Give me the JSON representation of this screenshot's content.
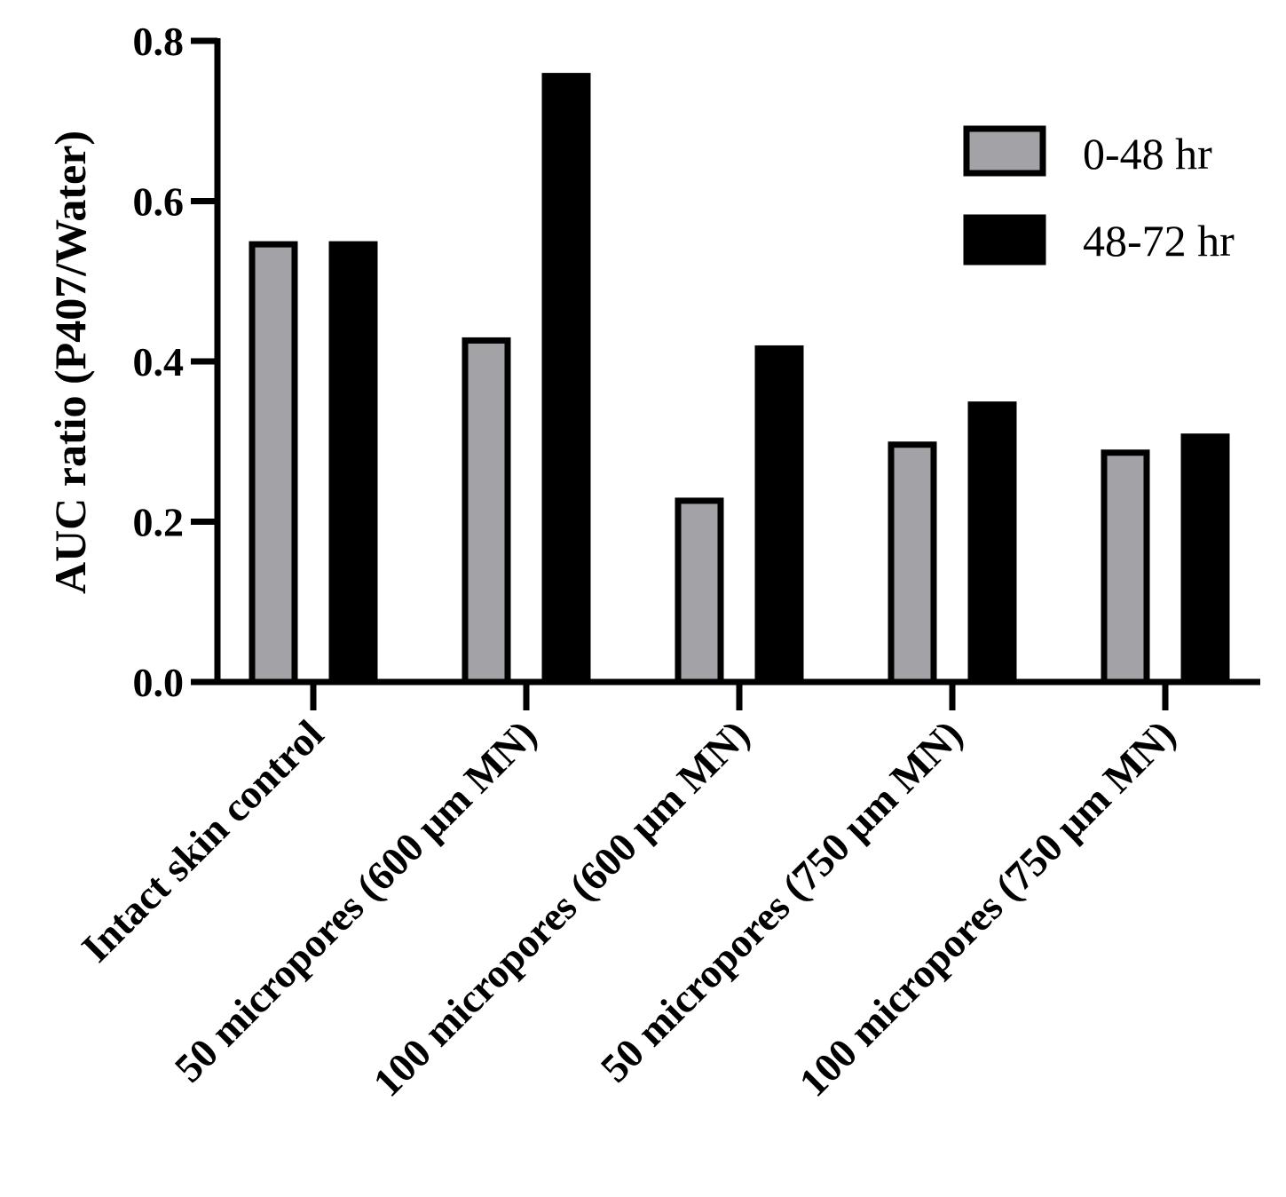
{
  "chart_data": {
    "type": "bar",
    "title": "",
    "xlabel": "",
    "ylabel": "AUC ratio (P407/Water)",
    "ylim": [
      0,
      0.8
    ],
    "yticks": [
      "0.0",
      "0.2",
      "0.4",
      "0.6",
      "0.8"
    ],
    "ytick_values": [
      0,
      0.2,
      0.4,
      0.6,
      0.8
    ],
    "categories": [
      "Intact skin control",
      "50 micropores (600 μm MN)",
      "100 micropores (600 μm MN)",
      "50 micropores (750 μm MN)",
      "100 micropores (750 μm MN)"
    ],
    "series": [
      {
        "name": "0-48 hr",
        "values": [
          0.55,
          0.43,
          0.23,
          0.3,
          0.29
        ],
        "color": "#a3a2a7",
        "edge": "#000000"
      },
      {
        "name": "48-72 hr",
        "values": [
          0.55,
          0.76,
          0.42,
          0.35,
          0.31
        ],
        "color": "#000000",
        "edge": "#000000"
      }
    ],
    "legend_position": "top-right",
    "grid": false
  }
}
